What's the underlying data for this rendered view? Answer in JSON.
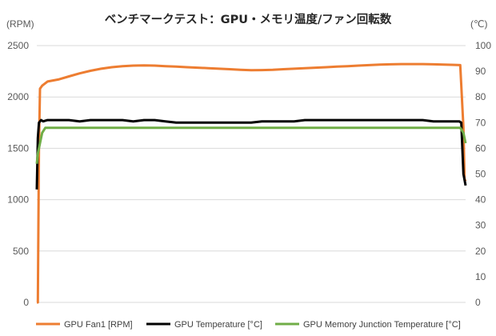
{
  "chart_data": {
    "type": "line",
    "title": "ベンチマークテスト：GPU・メモリ温度/ファン回転数",
    "xlabel": "",
    "ylabel": "(RPM)",
    "y2label": "(℃)",
    "ylim": [
      0,
      2500
    ],
    "y2lim": [
      0,
      100
    ],
    "yticks": [
      "0",
      "500",
      "1000",
      "1500",
      "2000",
      "2500"
    ],
    "y2ticks": [
      "0",
      "10",
      "20",
      "30",
      "40",
      "50",
      "60",
      "70",
      "80",
      "90",
      "100"
    ],
    "grid": "horizontal",
    "legend_position": "bottom",
    "series": [
      {
        "name": "GPU Fan1 [RPM]",
        "axis": "left",
        "color": "#ED7D31",
        "x": [
          0,
          1,
          2,
          3,
          5,
          10,
          20,
          30,
          40,
          50,
          60,
          70,
          80,
          90,
          100,
          110,
          120,
          130,
          140,
          150,
          160,
          170,
          180,
          190,
          200,
          210,
          220,
          230,
          240,
          250,
          260,
          270,
          280,
          290,
          300,
          310,
          320,
          330,
          340,
          350,
          360,
          370,
          380,
          390,
          395,
          398,
          399,
          400
        ],
        "values": [
          0,
          0,
          1500,
          2080,
          2110,
          2150,
          2170,
          2200,
          2230,
          2255,
          2275,
          2290,
          2300,
          2305,
          2308,
          2305,
          2300,
          2295,
          2290,
          2285,
          2280,
          2275,
          2270,
          2265,
          2260,
          2262,
          2265,
          2270,
          2275,
          2280,
          2285,
          2290,
          2295,
          2300,
          2305,
          2310,
          2315,
          2318,
          2320,
          2320,
          2320,
          2318,
          2315,
          2312,
          2310,
          1700,
          1200,
          1180
        ]
      },
      {
        "name": "GPU Temperature [°C]",
        "axis": "right",
        "color": "#000000",
        "x": [
          0,
          1,
          2,
          4,
          6,
          10,
          20,
          30,
          40,
          50,
          60,
          70,
          80,
          90,
          100,
          110,
          120,
          130,
          140,
          150,
          160,
          170,
          180,
          190,
          200,
          210,
          220,
          230,
          240,
          250,
          260,
          270,
          280,
          290,
          300,
          310,
          320,
          330,
          340,
          350,
          360,
          370,
          380,
          390,
          394,
          396,
          398,
          400
        ],
        "values": [
          44,
          64,
          70,
          71,
          70.5,
          71,
          71,
          71,
          70.5,
          71,
          71,
          71,
          71,
          70.5,
          71,
          71,
          70.5,
          70,
          70,
          70,
          70,
          70,
          70,
          70,
          70,
          70.5,
          70.5,
          70.5,
          70.5,
          71,
          71,
          71,
          71,
          71,
          71,
          71,
          71,
          71,
          71,
          71,
          71,
          70.5,
          70.5,
          70.5,
          70.5,
          70,
          50,
          45.5
        ]
      },
      {
        "name": "GPU Memory Junction Temperature [°C]",
        "axis": "right",
        "color": "#70AD47",
        "x": [
          0,
          1,
          3,
          5,
          8,
          12,
          20,
          30,
          40,
          50,
          60,
          70,
          80,
          90,
          100,
          110,
          120,
          130,
          140,
          150,
          160,
          170,
          180,
          190,
          200,
          210,
          220,
          230,
          240,
          250,
          260,
          270,
          280,
          290,
          300,
          310,
          320,
          330,
          340,
          350,
          360,
          370,
          380,
          390,
          395,
          398,
          400
        ],
        "values": [
          54,
          58,
          62,
          66,
          68,
          68,
          68,
          68,
          68,
          68,
          68,
          68,
          68,
          68,
          68,
          68,
          68,
          68,
          68,
          68,
          68,
          68,
          68,
          68,
          68,
          68,
          68,
          68,
          68,
          68,
          68,
          68,
          68,
          68,
          68,
          68,
          68,
          68,
          68,
          68,
          68,
          68,
          68,
          68,
          68,
          66,
          62
        ]
      }
    ]
  }
}
